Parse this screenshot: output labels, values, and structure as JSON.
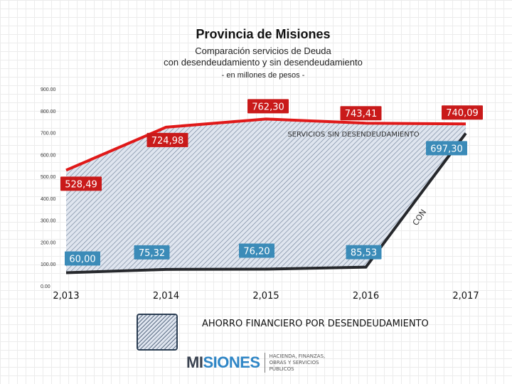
{
  "title": "Provincia de Misiones",
  "subtitle_line1": "Comparación servicios de Deuda",
  "subtitle_line2": "con desendeudamiento y sin desendeudamiento",
  "subtitle_line3": "- en millones de pesos -",
  "colors": {
    "upper_line": "#e01919",
    "lower_line": "#26282c",
    "hatch_fill": "#dfe5ef",
    "hatch_lines": "#6b7d94",
    "label_red_bg": "#c91a1a",
    "label_blue_bg": "#3b8bb8"
  },
  "chart_data": {
    "type": "area",
    "title": "Provincia de Misiones",
    "x": [
      "2,013",
      "2,014",
      "2,015",
      "2,016",
      "2,017"
    ],
    "ylim": [
      0,
      900
    ],
    "y_ticks": [
      "0.00",
      "100.00",
      "200.00",
      "300.00",
      "400.00",
      "500.00",
      "600.00",
      "700.00",
      "800.00",
      "900.00"
    ],
    "y_tick_values": [
      0,
      100,
      200,
      300,
      400,
      500,
      600,
      700,
      800,
      900
    ],
    "series": [
      {
        "name": "SERVICIOS SIN DESENDEUDAMIENTO",
        "values": [
          528.49,
          724.98,
          762.3,
          743.41,
          740.09
        ],
        "labels": [
          "528,49",
          "724,98",
          "762,30",
          "743,41",
          "740,09"
        ]
      },
      {
        "name_partial": "CON",
        "values": [
          60.0,
          75.32,
          76.2,
          85.53,
          697.3
        ],
        "labels": [
          "60,00",
          "75,32",
          "76,20",
          "85,53",
          "697,30"
        ]
      }
    ],
    "area_label": "AHORRO FINANCIERO POR DESENDEUDAMIENTO",
    "grid": false,
    "legend": "bottom"
  },
  "legend": {
    "label": "AHORRO FINANCIERO POR DESENDEUDAMIENTO"
  },
  "logo": {
    "word_part1": "MI",
    "word_part2": "SIONES",
    "dept_line1": "HACIENDA, FINANZAS,",
    "dept_line2": "OBRAS Y SERVICIOS PÚBLICOS"
  }
}
